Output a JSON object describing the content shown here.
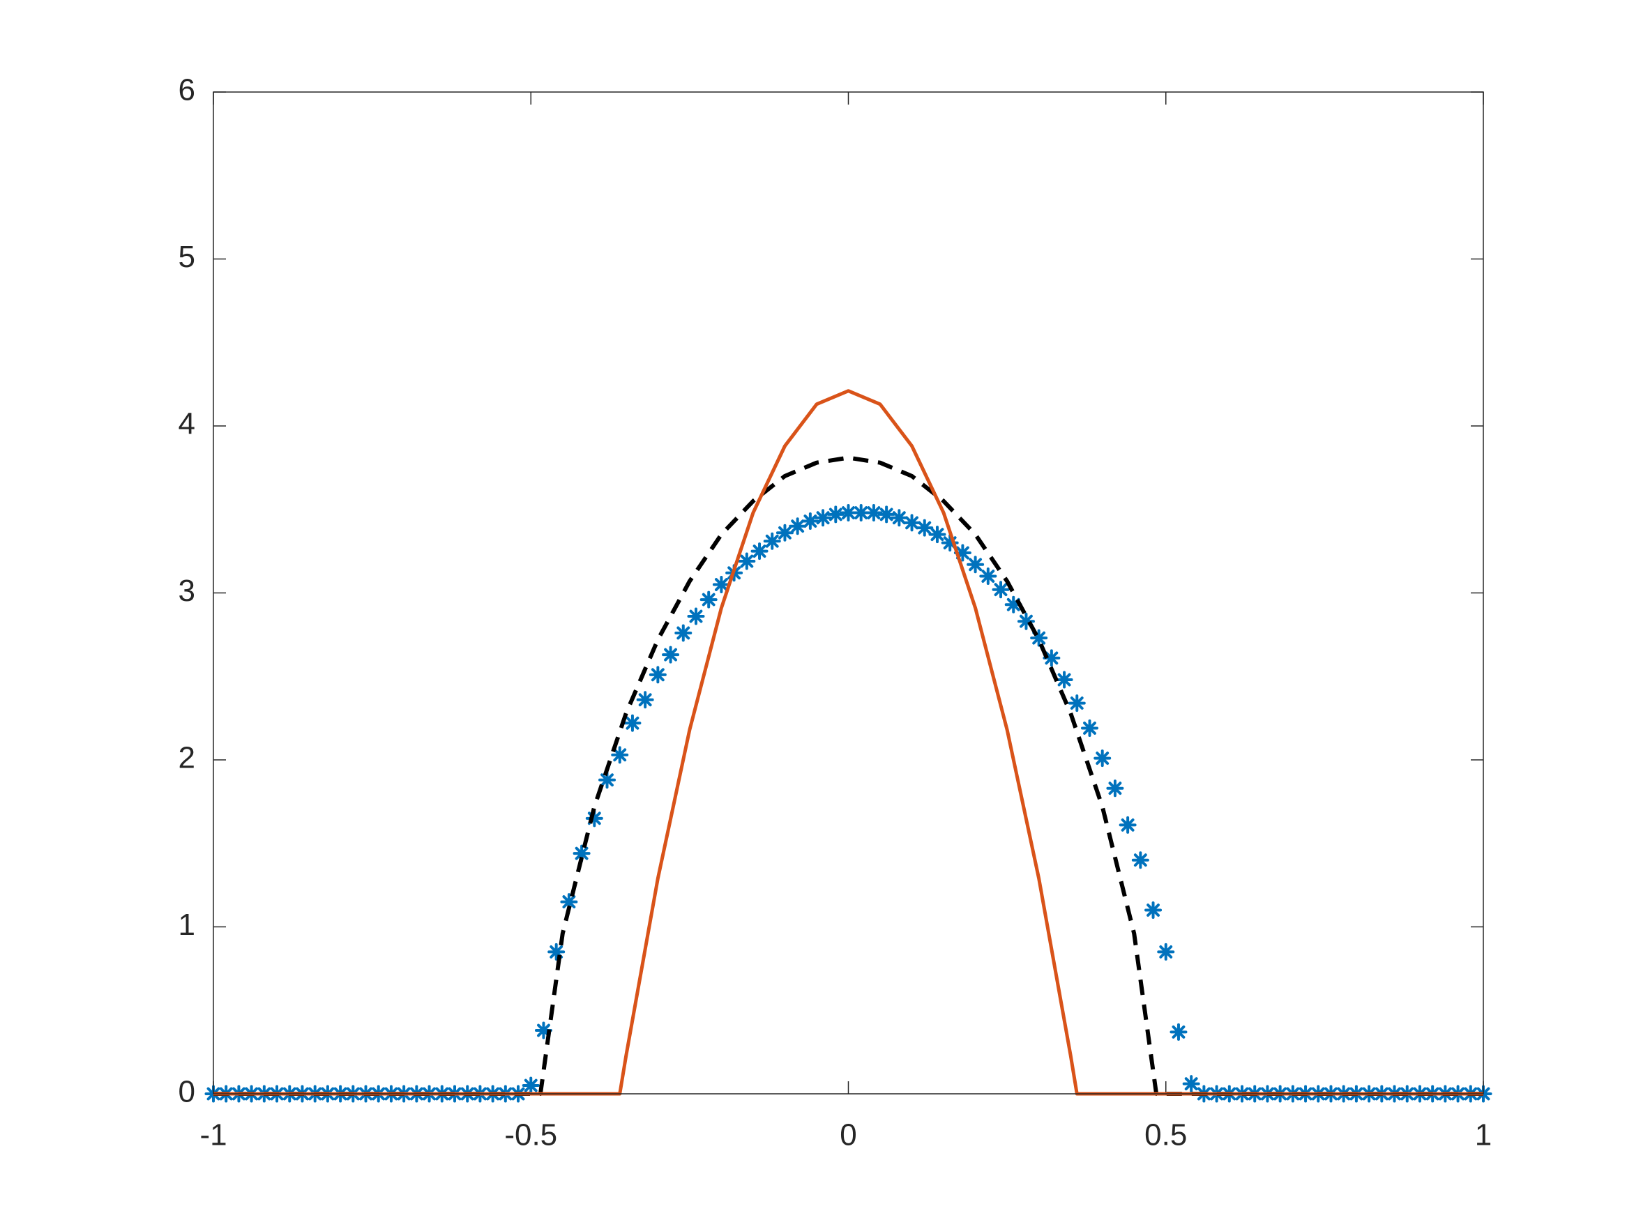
{
  "chart_data": {
    "type": "line",
    "xlim": [
      -1,
      1
    ],
    "ylim": [
      0,
      6
    ],
    "xticks": [
      -1,
      -0.5,
      0,
      0.5,
      1
    ],
    "yticks": [
      0,
      1,
      2,
      3,
      4,
      5,
      6
    ],
    "grid": false,
    "series": [
      {
        "color": "#0072BD",
        "linestyle": "none",
        "marker": "star",
        "x": [
          -1,
          -0.98,
          -0.96,
          -0.94,
          -0.92,
          -0.9,
          -0.88,
          -0.86,
          -0.84,
          -0.82,
          -0.8,
          -0.78,
          -0.76,
          -0.74,
          -0.72,
          -0.7,
          -0.68,
          -0.66,
          -0.64,
          -0.62,
          -0.6,
          -0.58,
          -0.56,
          -0.54,
          -0.52,
          -0.5,
          -0.48,
          -0.46,
          -0.44,
          -0.42,
          -0.4,
          -0.38,
          -0.36,
          -0.34,
          -0.32,
          -0.3,
          -0.28,
          -0.26,
          -0.24,
          -0.22,
          -0.2,
          -0.18,
          -0.16,
          -0.14,
          -0.12,
          -0.1,
          -0.08,
          -0.06,
          -0.04,
          -0.02,
          0,
          0.02,
          0.04,
          0.06,
          0.08,
          0.1,
          0.12,
          0.14,
          0.16,
          0.18,
          0.2,
          0.22,
          0.24,
          0.26,
          0.28,
          0.3,
          0.32,
          0.34,
          0.36,
          0.38,
          0.4,
          0.42,
          0.44,
          0.46,
          0.48,
          0.5,
          0.52,
          0.54,
          0.56,
          0.58,
          0.6,
          0.62,
          0.64,
          0.66,
          0.68,
          0.7,
          0.72,
          0.74,
          0.76,
          0.78,
          0.8,
          0.82,
          0.84,
          0.86,
          0.88,
          0.9,
          0.92,
          0.94,
          0.96,
          0.98,
          1
        ],
        "values": [
          0,
          0,
          0,
          0,
          0,
          0,
          0,
          0,
          0,
          0,
          0,
          0,
          0,
          0,
          0,
          0,
          0,
          0,
          0,
          0,
          0,
          0,
          0,
          0,
          0,
          0.05,
          0.38,
          0.85,
          1.15,
          1.44,
          1.65,
          1.88,
          2.03,
          2.22,
          2.36,
          2.51,
          2.63,
          2.76,
          2.86,
          2.96,
          3.05,
          3.12,
          3.19,
          3.25,
          3.31,
          3.36,
          3.4,
          3.43,
          3.45,
          3.47,
          3.48,
          3.48,
          3.48,
          3.47,
          3.45,
          3.42,
          3.39,
          3.35,
          3.3,
          3.24,
          3.17,
          3.1,
          3.02,
          2.93,
          2.83,
          2.73,
          2.61,
          2.48,
          2.34,
          2.19,
          2.01,
          1.83,
          1.61,
          1.4,
          1.1,
          0.85,
          0.37,
          0.06,
          0,
          0,
          0,
          0,
          0,
          0,
          0,
          0,
          0,
          0,
          0,
          0,
          0,
          0,
          0,
          0,
          0,
          0,
          0,
          0,
          0,
          0,
          0
        ]
      },
      {
        "color": "#000000",
        "linestyle": "dashed",
        "marker": "none",
        "x": [
          -1,
          -0.485,
          -0.45,
          -0.4,
          -0.35,
          -0.3,
          -0.25,
          -0.2,
          -0.15,
          -0.1,
          -0.05,
          0,
          0.05,
          0.1,
          0.15,
          0.2,
          0.25,
          0.3,
          0.35,
          0.4,
          0.45,
          0.485,
          1
        ],
        "values": [
          0,
          0,
          0.96,
          1.72,
          2.28,
          2.72,
          3.07,
          3.35,
          3.55,
          3.7,
          3.78,
          3.81,
          3.78,
          3.7,
          3.55,
          3.35,
          3.07,
          2.72,
          2.28,
          1.72,
          0.96,
          0,
          0
        ]
      },
      {
        "color": "#D95319",
        "linestyle": "solid",
        "marker": "none",
        "x": [
          -1,
          -0.36,
          -0.35,
          -0.3,
          -0.25,
          -0.2,
          -0.15,
          -0.1,
          -0.05,
          0,
          0.05,
          0.1,
          0.15,
          0.2,
          0.25,
          0.3,
          0.35,
          0.36,
          1
        ],
        "values": [
          0,
          0,
          0.23,
          1.29,
          2.18,
          2.91,
          3.48,
          3.88,
          4.13,
          4.21,
          4.13,
          3.88,
          3.48,
          2.91,
          2.18,
          1.29,
          0.23,
          0,
          0
        ]
      }
    ]
  }
}
